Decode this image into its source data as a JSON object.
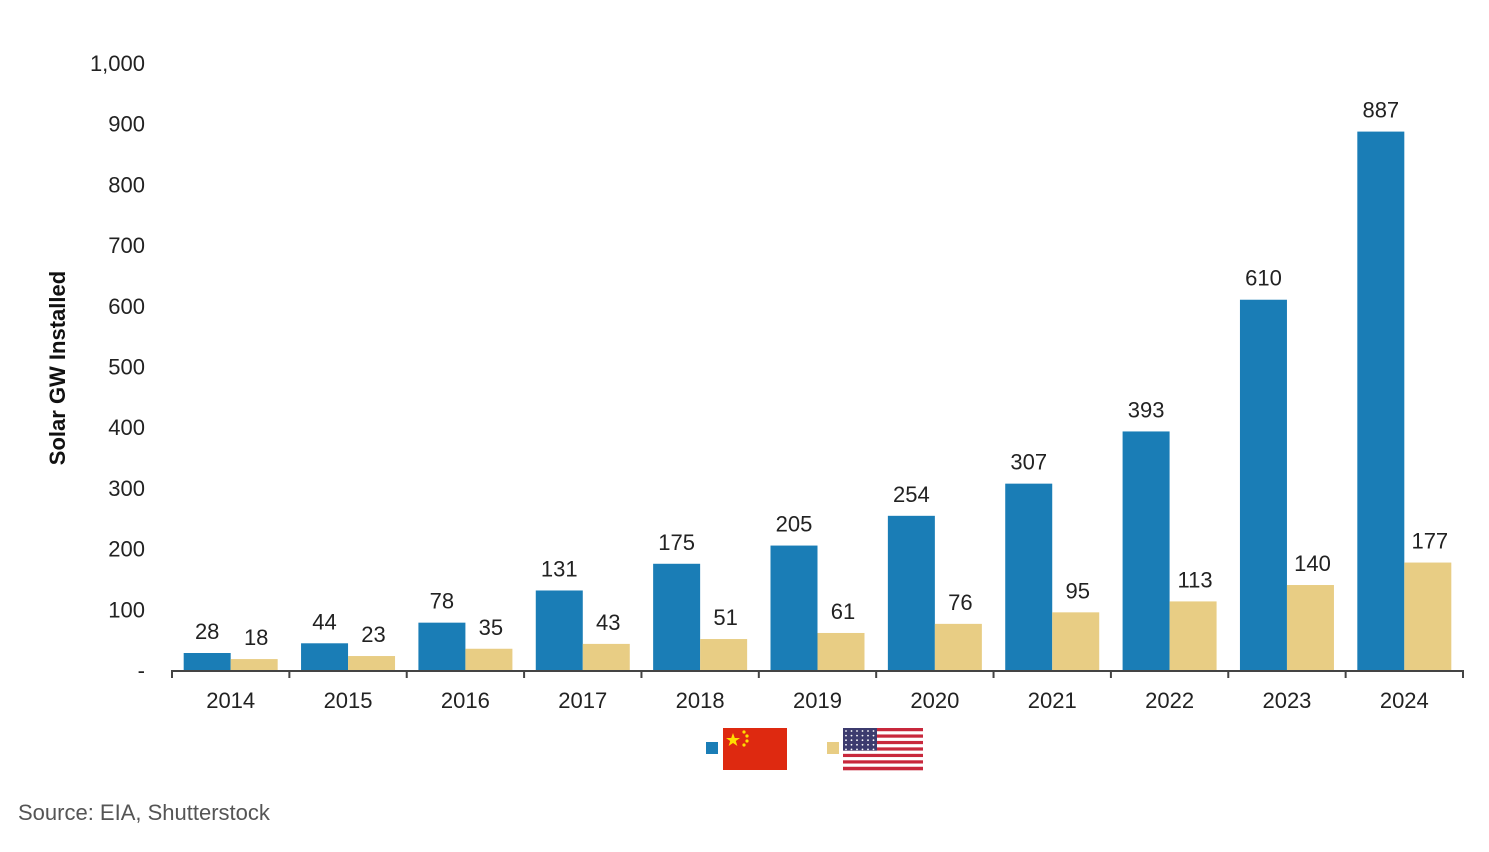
{
  "chart_data": {
    "type": "bar",
    "categories": [
      "2014",
      "2015",
      "2016",
      "2017",
      "2018",
      "2019",
      "2020",
      "2021",
      "2022",
      "2023",
      "2024"
    ],
    "series": [
      {
        "flag": "china-flag",
        "color": "#1a7db6",
        "values": [
          28,
          44,
          78,
          131,
          175,
          205,
          254,
          307,
          393,
          610,
          887
        ]
      },
      {
        "flag": "usa-flag",
        "color": "#e8cd84",
        "values": [
          18,
          23,
          35,
          43,
          51,
          61,
          76,
          95,
          113,
          140,
          177
        ]
      }
    ],
    "ylabel": "Solar GW Installed",
    "ylim": [
      0,
      1000
    ],
    "yticks": [
      {
        "value": 0,
        "label": "-"
      },
      {
        "value": 100,
        "label": "100"
      },
      {
        "value": 200,
        "label": "200"
      },
      {
        "value": 300,
        "label": "300"
      },
      {
        "value": 400,
        "label": "400"
      },
      {
        "value": 500,
        "label": "500"
      },
      {
        "value": 600,
        "label": "600"
      },
      {
        "value": 700,
        "label": "700"
      },
      {
        "value": 800,
        "label": "800"
      },
      {
        "value": 900,
        "label": "900"
      },
      {
        "value": 1000,
        "label": "1,000"
      }
    ],
    "grid": false,
    "legend": "bottom-center"
  },
  "source": "Source: EIA, Shutterstock"
}
